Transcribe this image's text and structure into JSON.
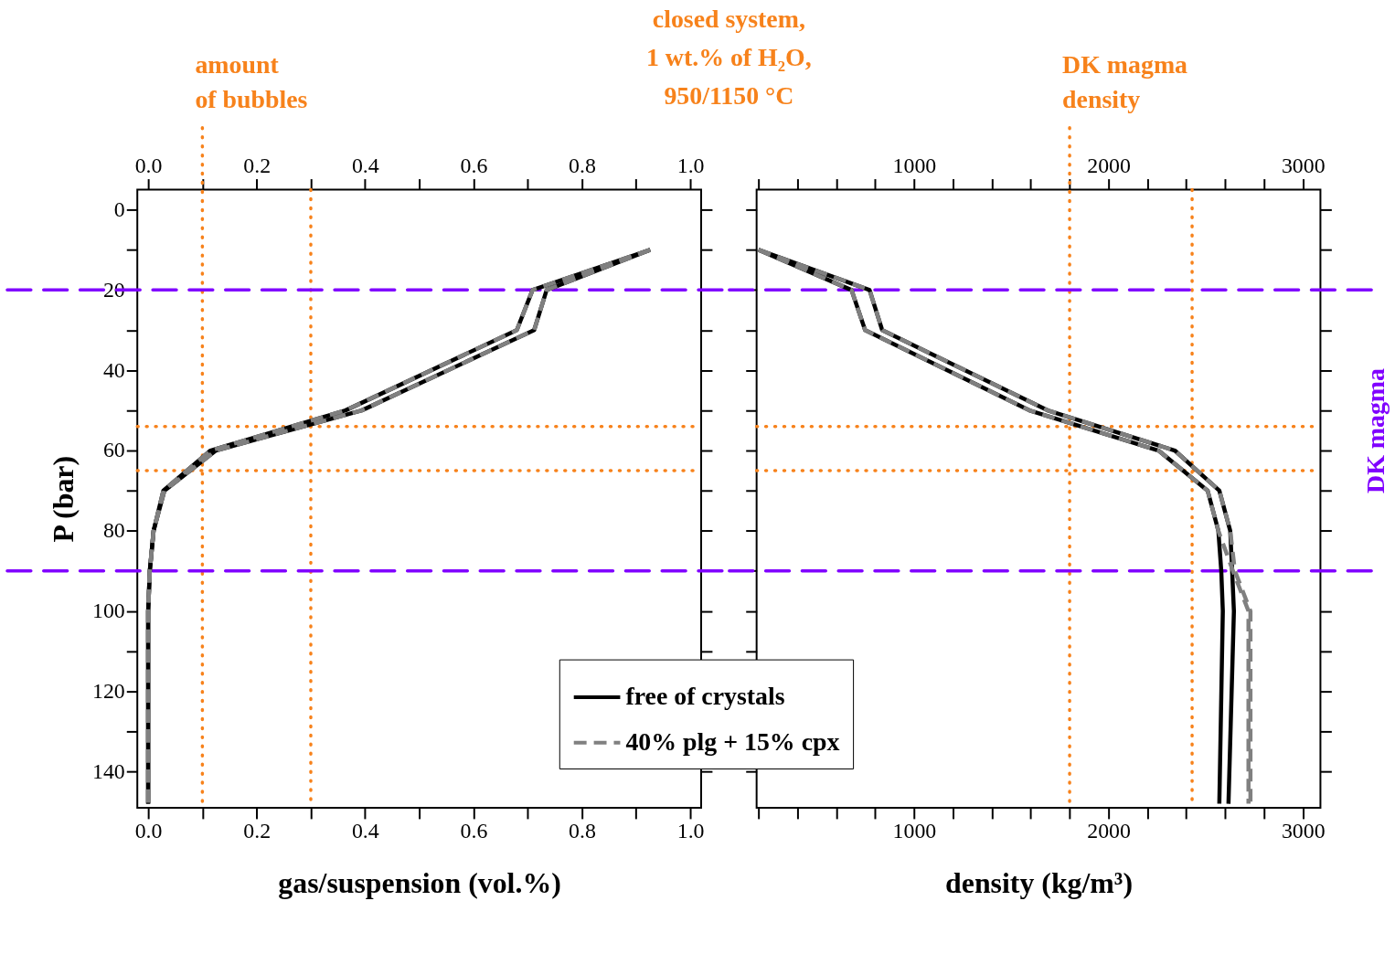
{
  "chart_data": [
    {
      "type": "line",
      "xlabel": "gas/suspension (vol.%)",
      "ylabel": "P (bar)",
      "annotations": [
        "closed system,\n1 wt.% of H₂O,\n950/1150 °C"
      ],
      "xlim": [
        -0.02,
        1.02
      ],
      "xticks": [
        {
          "value": 0,
          "label": "0.0"
        },
        {
          "value": 0.1,
          "label": null
        },
        0.2,
        {
          "value": 0.3,
          "label": null
        },
        0.4,
        {
          "value": 0.5,
          "label": null
        },
        0.6,
        {
          "value": 0.7,
          "label": null
        },
        0.8,
        {
          "value": 0.9,
          "label": null
        },
        {
          "value": 1,
          "label": "1.0"
        }
      ],
      "x2lim": [
        -0.02,
        1.02
      ],
      "x2ticks": [
        {
          "value": 0,
          "label": "0.0"
        },
        {
          "value": 0.1,
          "label": null
        },
        0.2,
        {
          "value": 0.3,
          "label": null
        },
        0.4,
        {
          "value": 0.5,
          "label": null
        },
        0.6,
        {
          "value": 0.7,
          "label": null
        },
        0.8,
        {
          "value": 0.9,
          "label": null
        },
        {
          "value": 1,
          "label": "1.0"
        }
      ],
      "ylim": [
        149,
        -5
      ],
      "yticks": [
        0,
        {
          "value": 10,
          "label": null
        },
        20,
        {
          "value": 30,
          "label": null
        },
        40,
        {
          "value": 50,
          "label": null
        },
        60,
        {
          "value": 70,
          "label": null
        },
        80,
        {
          "value": 90,
          "label": null
        },
        100,
        {
          "value": 110,
          "label": null
        },
        120,
        {
          "value": 130,
          "label": null
        },
        140
      ],
      "series": [
        {
          "color": "#000000",
          "line_style": "solid",
          "x": [
            0.926,
            0.735,
            0.712,
            0.394,
            0.125,
            0.03,
            0.01,
            0.003,
            0,
            0
          ],
          "values": [
            10,
            20,
            30,
            50,
            60,
            70,
            80,
            90,
            100,
            148
          ]
        },
        {
          "color": "#000000",
          "line_style": "solid",
          "x": [
            0.926,
            0.709,
            0.68,
            0.364,
            0.115,
            0.028,
            0.01,
            0.003,
            0,
            0
          ],
          "values": [
            10,
            20,
            30,
            50,
            60,
            70,
            80,
            90,
            100,
            148
          ]
        },
        {
          "color": "#808080",
          "line_style": "dashed",
          "x": [
            0.926,
            0.735,
            0.712,
            0.394,
            0.125,
            0.03,
            0.01,
            0.003,
            0,
            0
          ],
          "values": [
            10,
            20,
            30,
            50,
            60,
            70,
            80,
            90,
            100,
            148
          ]
        },
        {
          "color": "#808080",
          "line_style": "dashed",
          "x": [
            0.926,
            0.709,
            0.68,
            0.364,
            0.115,
            0.028,
            0.01,
            0.003,
            0,
            0
          ],
          "values": [
            10,
            20,
            30,
            50,
            60,
            70,
            80,
            90,
            100,
            148
          ]
        }
      ],
      "ref_lines": [
        {
          "axis": "x",
          "value": 0.1,
          "label": "amount\nof bubbles",
          "color": "#f7821b",
          "line_style": "dotted"
        },
        {
          "axis": "x",
          "value": 0.3,
          "color": "#f7821b",
          "line_style": "dotted"
        },
        {
          "axis": "y",
          "value": 54,
          "color": "#f7821b",
          "line_style": "dotted"
        },
        {
          "axis": "y",
          "value": 65,
          "color": "#f7821b",
          "line_style": "dotted"
        },
        {
          "axis": "y",
          "value": 20,
          "color": "#8000ff",
          "line_style": "dashed"
        },
        {
          "axis": "y",
          "value": 90,
          "color": "#8000ff",
          "line_style": "dashed"
        }
      ],
      "grid": false,
      "legend": false
    },
    {
      "type": "line",
      "xlabel": "density (kg/m³)",
      "xlim": [
        190,
        3090
      ],
      "xticks": [
        {
          "value": 200,
          "label": null
        },
        {
          "value": 400,
          "label": null
        },
        {
          "value": 600,
          "label": null
        },
        {
          "value": 800,
          "label": null
        },
        1000,
        {
          "value": 1200,
          "label": null
        },
        {
          "value": 1400,
          "label": null
        },
        {
          "value": 1600,
          "label": null
        },
        {
          "value": 1800,
          "label": null
        },
        2000,
        {
          "value": 2200,
          "label": null
        },
        {
          "value": 2400,
          "label": null
        },
        {
          "value": 2600,
          "label": null
        },
        {
          "value": 2800,
          "label": null
        },
        3000
      ],
      "x2lim": [
        190,
        3090
      ],
      "x2ticks": [
        {
          "value": 200,
          "label": null
        },
        {
          "value": 400,
          "label": null
        },
        {
          "value": 600,
          "label": null
        },
        {
          "value": 800,
          "label": null
        },
        1000,
        {
          "value": 1200,
          "label": null
        },
        {
          "value": 1400,
          "label": null
        },
        {
          "value": 1600,
          "label": null
        },
        {
          "value": 1800,
          "label": null
        },
        2000,
        {
          "value": 2200,
          "label": null
        },
        {
          "value": 2400,
          "label": null
        },
        {
          "value": 2600,
          "label": null
        },
        {
          "value": 2800,
          "label": null
        },
        3000
      ],
      "ylim": [
        149,
        -5
      ],
      "yticks": [
        {
          "value": 0,
          "label": null
        },
        {
          "value": 10,
          "label": null
        },
        {
          "value": 20,
          "label": null
        },
        {
          "value": 30,
          "label": null
        },
        {
          "value": 40,
          "label": null
        },
        {
          "value": 50,
          "label": null
        },
        {
          "value": 60,
          "label": null
        },
        {
          "value": 70,
          "label": null
        },
        {
          "value": 80,
          "label": null
        },
        {
          "value": 90,
          "label": null
        },
        {
          "value": 100,
          "label": null
        },
        {
          "value": 110,
          "label": null
        },
        {
          "value": 120,
          "label": null
        },
        {
          "value": 130,
          "label": null
        },
        {
          "value": 140,
          "label": null
        }
      ],
      "tick_labels": "x",
      "series": [
        {
          "name": "free of  crystals",
          "color": "#000000",
          "line_style": "solid",
          "x": [
            200,
            678,
            748,
            1593,
            2257,
            2510,
            2565,
            2580,
            2588,
            2570
          ],
          "values": [
            10,
            20,
            30,
            50,
            60,
            70,
            80,
            90,
            100,
            148
          ]
        },
        {
          "color": "#000000",
          "line_style": "solid",
          "x": [
            200,
            771,
            836,
            1687,
            2341,
            2570,
            2626,
            2636,
            2645,
            2617
          ],
          "values": [
            10,
            20,
            30,
            50,
            60,
            70,
            80,
            90,
            100,
            148
          ]
        },
        {
          "name": "40% plg + 15% cpx",
          "color": "#808080",
          "line_style": "dashed",
          "x": [
            200,
            678,
            748,
            1593,
            2257,
            2510,
            2565,
            2640,
            2720,
            2720
          ],
          "values": [
            10,
            20,
            30,
            50,
            60,
            70,
            80,
            90,
            100,
            148
          ]
        },
        {
          "color": "#808080",
          "line_style": "dashed",
          "x": [
            200,
            771,
            836,
            1687,
            2341,
            2570,
            2626,
            2650,
            2730,
            2730
          ],
          "values": [
            10,
            20,
            30,
            50,
            60,
            70,
            80,
            90,
            100,
            148
          ]
        }
      ],
      "ref_lines": [
        {
          "axis": "x",
          "value": 1800,
          "label": "DK magma\ndensity",
          "color": "#f7821b",
          "line_style": "dotted"
        },
        {
          "axis": "x",
          "value": 2430,
          "color": "#f7821b",
          "line_style": "dotted"
        },
        {
          "axis": "y",
          "value": 54,
          "color": "#f7821b",
          "line_style": "dotted"
        },
        {
          "axis": "y",
          "value": 65,
          "color": "#f7821b",
          "line_style": "dotted"
        },
        {
          "axis": "y",
          "value": 20,
          "label": "DK magma",
          "color": "#8000ff",
          "line_style": "dashed"
        },
        {
          "axis": "y",
          "value": 90,
          "color": "#8000ff",
          "line_style": "dashed"
        }
      ],
      "grid": false,
      "legend": "bottom left"
    }
  ]
}
